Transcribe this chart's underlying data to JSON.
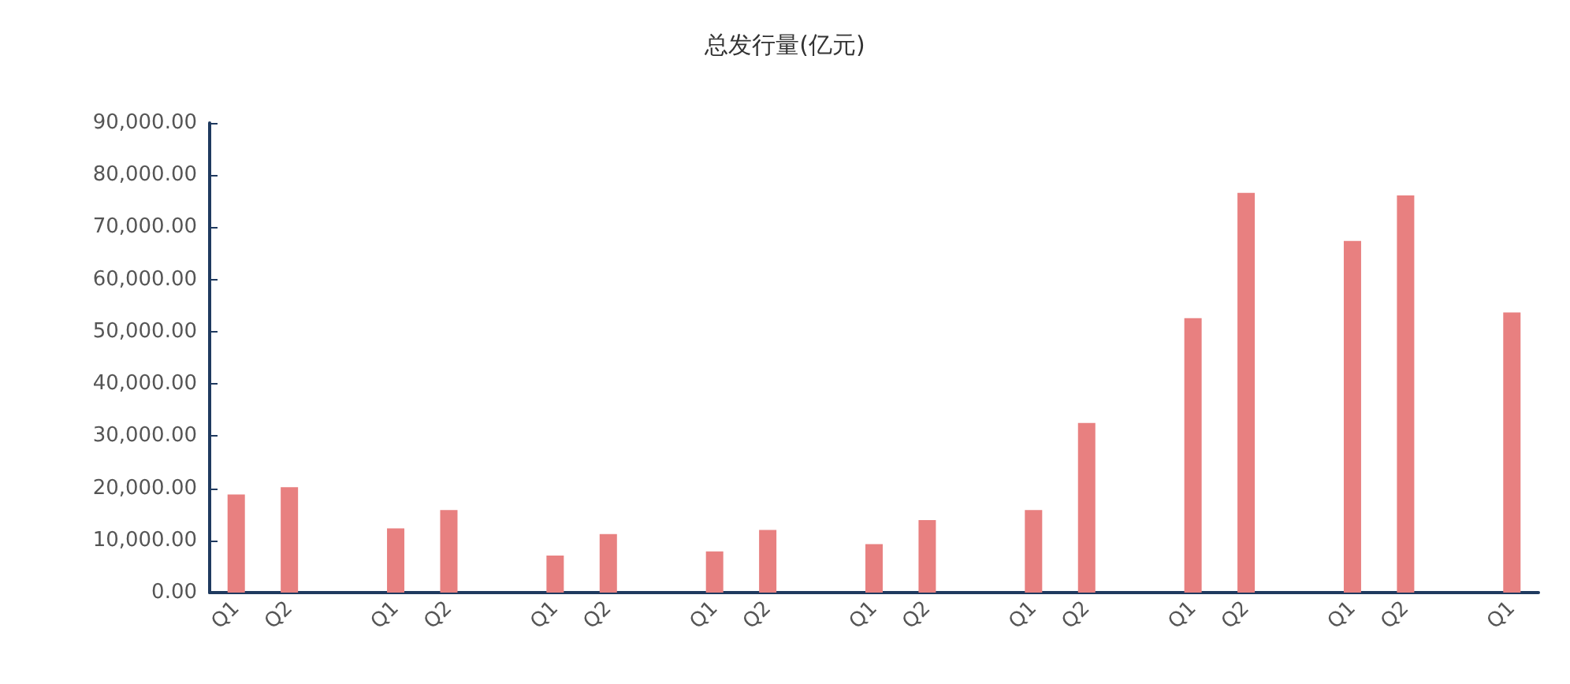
{
  "chart_data": {
    "type": "bar",
    "title": "总发行量(亿元)",
    "categories": [
      "Q1",
      "Q2",
      null,
      "Q1",
      "Q2",
      null,
      "Q1",
      "Q2",
      null,
      "Q1",
      "Q2",
      null,
      "Q1",
      "Q2",
      null,
      "Q1",
      "Q2",
      null,
      "Q1",
      "Q2",
      null,
      "Q1",
      "Q2",
      null,
      "Q1"
    ],
    "values": [
      18800,
      20200,
      null,
      12300,
      15800,
      null,
      7100,
      11200,
      null,
      7900,
      12000,
      null,
      9300,
      13900,
      null,
      15800,
      32500,
      null,
      52600,
      76600,
      null,
      67400,
      76100,
      null,
      53700
    ],
    "color": "#e88080",
    "ylim": [
      0,
      90000
    ],
    "yticks": [
      {
        "value": 0,
        "label": "0.00"
      },
      {
        "value": 10000,
        "label": "10,000.00"
      },
      {
        "value": 20000,
        "label": "20,000.00"
      },
      {
        "value": 30000,
        "label": "30,000.00"
      },
      {
        "value": 40000,
        "label": "40,000.00"
      },
      {
        "value": 50000,
        "label": "50,000.00"
      },
      {
        "value": 60000,
        "label": "60,000.00"
      },
      {
        "value": 70000,
        "label": "70,000.00"
      },
      {
        "value": 80000,
        "label": "80,000.00"
      },
      {
        "value": 90000,
        "label": "90,000.00"
      }
    ],
    "grid": false
  }
}
